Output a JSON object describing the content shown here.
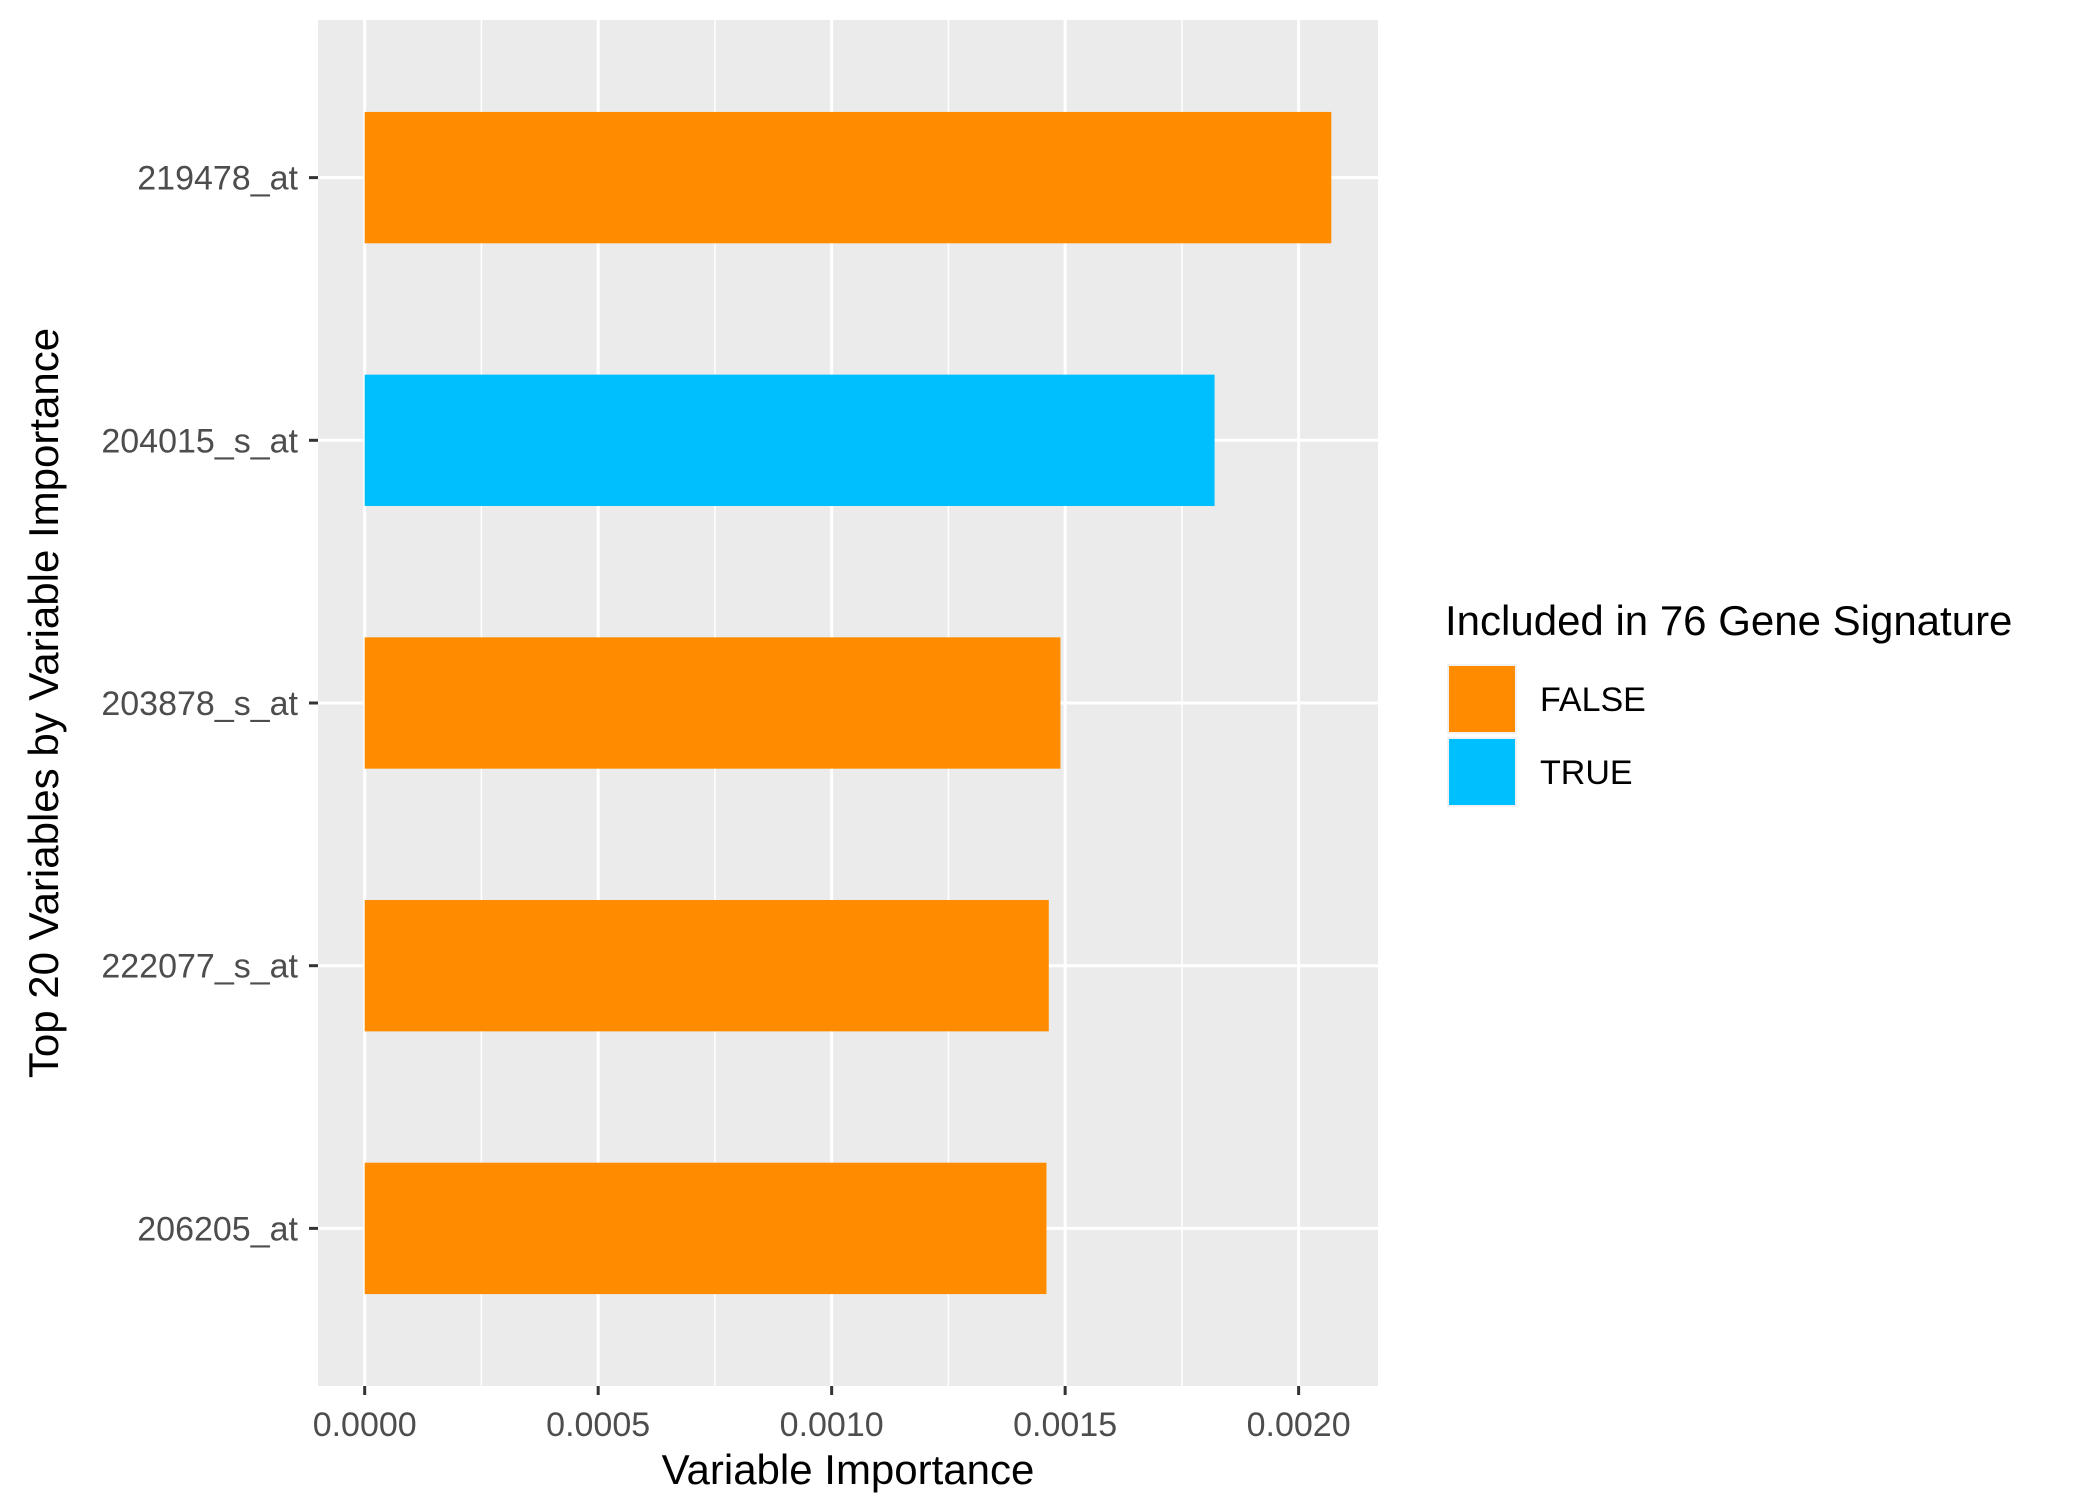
{
  "chart_data": {
    "type": "bar",
    "orientation": "horizontal",
    "xlabel": "Variable Importance",
    "ylabel": "Top 20 Variables by Variable Importance",
    "xlim": [
      -0.0001,
      0.00217
    ],
    "x_ticks": [
      0.0,
      0.0005,
      0.001,
      0.0015,
      0.002
    ],
    "x_tick_labels": [
      "0.0000",
      "0.0005",
      "0.0010",
      "0.0015",
      "0.0020"
    ],
    "grid": true,
    "panel_background": "#ebebeb",
    "categories": [
      "219478_at",
      "204015_s_at",
      "203878_s_at",
      "222077_s_at",
      "206205_at"
    ],
    "values": [
      0.00207,
      0.00182,
      0.00149,
      0.001465,
      0.00146
    ],
    "groups": [
      "FALSE",
      "TRUE",
      "FALSE",
      "FALSE",
      "FALSE"
    ],
    "legend": {
      "title": "Included in 76 Gene Signature",
      "placement": "right",
      "entries": [
        {
          "label": "FALSE",
          "color": "#ff8c00"
        },
        {
          "label": "TRUE",
          "color": "#00bfff"
        }
      ]
    }
  }
}
